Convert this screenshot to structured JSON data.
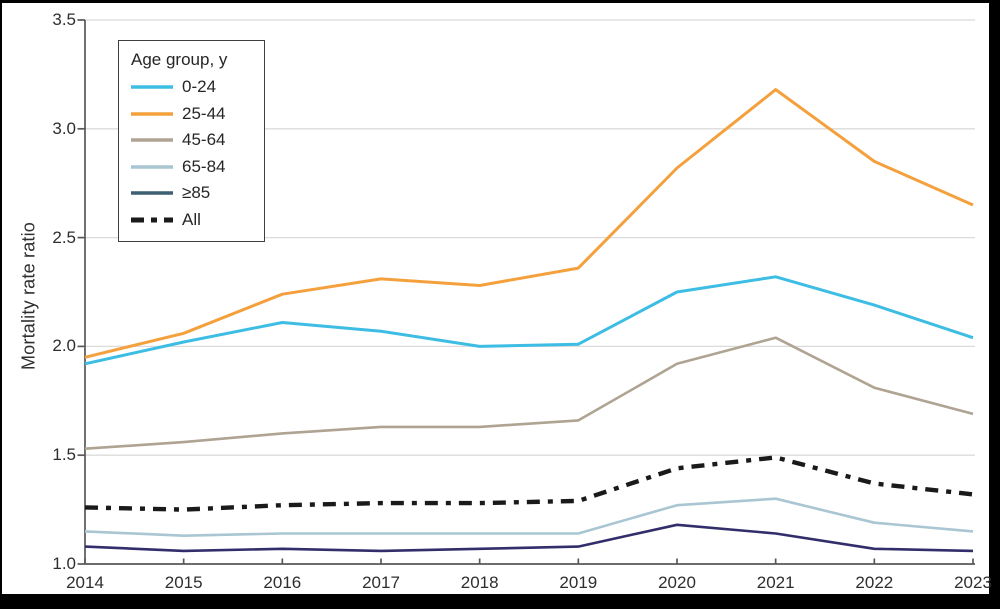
{
  "figure": {
    "ylabel": "Mortality rate ratio"
  },
  "legend": {
    "title": "Age group, y"
  },
  "chart_data": {
    "type": "line",
    "title": "",
    "xlabel": "",
    "ylabel": "Mortality rate ratio",
    "x": [
      2014,
      2015,
      2016,
      2017,
      2018,
      2019,
      2020,
      2021,
      2022,
      2023
    ],
    "x_tick_labels": [
      "2014",
      "2015",
      "2016",
      "2017",
      "2018",
      "2019",
      "2020",
      "2021",
      "2022",
      "2023"
    ],
    "y_ticks": [
      1.0,
      1.5,
      2.0,
      2.5,
      3.0,
      3.5
    ],
    "y_tick_labels": [
      "1.0",
      "1.5",
      "2.0",
      "2.5",
      "3.0",
      "3.5"
    ],
    "ylim": [
      1.0,
      3.5
    ],
    "grid": "horizontal-only",
    "legend_title": "Age group, y",
    "legend_position": "top-left-inside",
    "series": [
      {
        "name": "0-24",
        "color": "#3dbde3",
        "style": "solid",
        "values": [
          1.92,
          2.02,
          2.11,
          2.07,
          2.0,
          2.01,
          2.25,
          2.32,
          2.19,
          2.04
        ]
      },
      {
        "name": "25-44",
        "color": "#f4a13d",
        "style": "solid",
        "values": [
          1.95,
          2.06,
          2.24,
          2.31,
          2.28,
          2.36,
          2.82,
          3.18,
          2.85,
          2.65
        ]
      },
      {
        "name": "45-64",
        "color": "#afa392",
        "style": "solid",
        "values": [
          1.53,
          1.56,
          1.6,
          1.63,
          1.63,
          1.66,
          1.92,
          2.04,
          1.81,
          1.69
        ]
      },
      {
        "name": "65-84",
        "color": "#a9c6d2",
        "style": "solid",
        "values": [
          1.15,
          1.13,
          1.14,
          1.14,
          1.14,
          1.14,
          1.27,
          1.3,
          1.19,
          1.15
        ]
      },
      {
        "name": "≥85",
        "color": "#312e6b",
        "legend_color": "#3d5f70",
        "style": "solid",
        "values": [
          1.08,
          1.06,
          1.07,
          1.06,
          1.07,
          1.08,
          1.18,
          1.14,
          1.07,
          1.06
        ]
      },
      {
        "name": "All",
        "color": "#1a1a1a",
        "style": "dashed",
        "values": [
          1.26,
          1.25,
          1.27,
          1.28,
          1.28,
          1.29,
          1.44,
          1.49,
          1.37,
          1.32
        ]
      }
    ]
  }
}
